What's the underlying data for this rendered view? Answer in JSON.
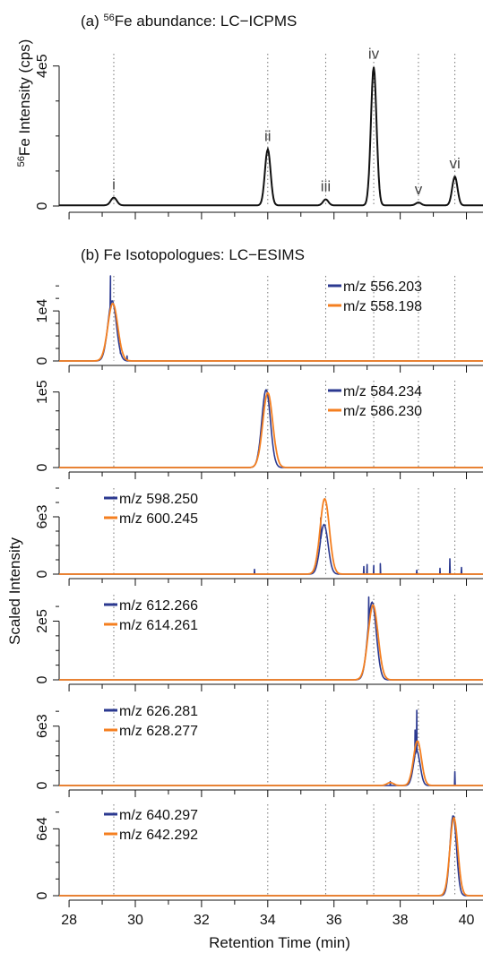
{
  "figure": {
    "xlabel": "Retention Time (min)",
    "shared_ylabel": "Scaled Intensity",
    "x_ticks": [
      28,
      30,
      32,
      34,
      36,
      38,
      40
    ],
    "xlim": [
      27.7,
      40.5
    ],
    "peak_markers": [
      29.35,
      34.0,
      35.75,
      37.2,
      38.55,
      39.65
    ]
  },
  "chart_data": [
    {
      "type": "line",
      "panel": "a",
      "title_prefix": "(a) ",
      "title_iso": "56",
      "title_rest": "Fe abundance: LC−ICPMS",
      "ylabel_iso": "56",
      "ylabel_rest": "Fe  Intensity (cps)",
      "y_ticks": [
        {
          "value": 0,
          "label": "0"
        },
        {
          "value": 400000,
          "label": "4e5"
        }
      ],
      "ylim": [
        0,
        435000
      ],
      "baseline": 2000,
      "peaks": [
        {
          "label": "i",
          "rt": 29.35,
          "height": 22000,
          "sigma": 0.09
        },
        {
          "label": "ii",
          "rt": 34.0,
          "height": 160000,
          "sigma": 0.085
        },
        {
          "label": "iii",
          "rt": 35.75,
          "height": 17000,
          "sigma": 0.08
        },
        {
          "label": "iv",
          "rt": 37.2,
          "height": 395000,
          "sigma": 0.085
        },
        {
          "label": "v",
          "rt": 38.55,
          "height": 8000,
          "sigma": 0.08
        },
        {
          "label": "vi",
          "rt": 39.65,
          "height": 82000,
          "sigma": 0.08
        }
      ]
    },
    {
      "type": "line",
      "panel": "b",
      "title": "(b)  Fe Isotopologues: LC−ESIMS",
      "y_ticks": [
        {
          "value": 0,
          "label": "0"
        },
        {
          "value": 10000,
          "label": "1e4"
        }
      ],
      "ylim": [
        0,
        17000
      ],
      "legend_pos": "top-right",
      "series": [
        {
          "name": "m/z 556.203",
          "color": "#2b3990",
          "peaks": [
            {
              "rt": 29.3,
              "height": 12000,
              "sigma": 0.13
            }
          ],
          "spikes": [
            {
              "rt": 29.25,
              "height": 17000
            },
            {
              "rt": 29.55,
              "height": 1500
            },
            {
              "rt": 29.75,
              "height": 1000
            }
          ]
        },
        {
          "name": "m/z 558.198",
          "color": "#f47f20",
          "peaks": [
            {
              "rt": 29.32,
              "height": 11500,
              "sigma": 0.15
            }
          ],
          "spikes": []
        }
      ]
    },
    {
      "type": "line",
      "panel": "b2",
      "y_ticks": [
        {
          "value": 0,
          "label": "0"
        },
        {
          "value": 100000,
          "label": "1e5"
        }
      ],
      "ylim": [
        0,
        115000
      ],
      "legend_pos": "top-right",
      "series": [
        {
          "name": "m/z 584.234",
          "color": "#2b3990",
          "peaks": [
            {
              "rt": 33.95,
              "height": 103000,
              "sigma": 0.13
            }
          ],
          "spikes": []
        },
        {
          "name": "m/z 586.230",
          "color": "#f47f20",
          "peaks": [
            {
              "rt": 34.0,
              "height": 99000,
              "sigma": 0.15
            }
          ],
          "spikes": []
        }
      ]
    },
    {
      "type": "line",
      "panel": "b3",
      "y_ticks": [
        {
          "value": 0,
          "label": "0"
        },
        {
          "value": 6000,
          "label": "6e3"
        }
      ],
      "ylim": [
        0,
        9000
      ],
      "legend_pos": "top-left",
      "series": [
        {
          "name": "m/z 598.250",
          "color": "#2b3990",
          "peaks": [
            {
              "rt": 35.7,
              "height": 5200,
              "sigma": 0.12
            }
          ],
          "spikes": [
            {
              "rt": 33.6,
              "height": 500
            },
            {
              "rt": 35.6,
              "height": 5900
            },
            {
              "rt": 36.9,
              "height": 800
            },
            {
              "rt": 37.0,
              "height": 1000
            },
            {
              "rt": 37.2,
              "height": 900
            },
            {
              "rt": 37.4,
              "height": 1100
            },
            {
              "rt": 38.5,
              "height": 400
            },
            {
              "rt": 39.2,
              "height": 600
            },
            {
              "rt": 39.5,
              "height": 1600
            },
            {
              "rt": 39.85,
              "height": 700
            }
          ]
        },
        {
          "name": "m/z 600.245",
          "color": "#f47f20",
          "peaks": [
            {
              "rt": 35.72,
              "height": 7900,
              "sigma": 0.14
            }
          ],
          "spikes": []
        }
      ]
    },
    {
      "type": "line",
      "panel": "b4",
      "y_ticks": [
        {
          "value": 0,
          "label": "0"
        },
        {
          "value": 200000,
          "label": "2e5"
        }
      ],
      "ylim": [
        0,
        290000
      ],
      "legend_pos": "top-left",
      "series": [
        {
          "name": "m/z 612.266",
          "color": "#2b3990",
          "peaks": [
            {
              "rt": 37.15,
              "height": 265000,
              "sigma": 0.13
            }
          ],
          "spikes": [
            {
              "rt": 37.05,
              "height": 282000
            }
          ]
        },
        {
          "name": "m/z 614.261",
          "color": "#f47f20",
          "peaks": [
            {
              "rt": 37.18,
              "height": 255000,
              "sigma": 0.15
            }
          ],
          "spikes": []
        }
      ]
    },
    {
      "type": "line",
      "panel": "b5",
      "y_ticks": [
        {
          "value": 0,
          "label": "0"
        },
        {
          "value": 6000,
          "label": "6e3"
        }
      ],
      "ylim": [
        0,
        8600
      ],
      "legend_pos": "top-left",
      "series": [
        {
          "name": "m/z 626.281",
          "color": "#2b3990",
          "peaks": [
            {
              "rt": 38.5,
              "height": 3500,
              "sigma": 0.1
            }
          ],
          "spikes": [
            {
              "rt": 38.5,
              "height": 7600
            },
            {
              "rt": 38.45,
              "height": 5600
            },
            {
              "rt": 37.7,
              "height": 400
            },
            {
              "rt": 39.65,
              "height": 1400
            }
          ]
        },
        {
          "name": "m/z 628.277",
          "color": "#f47f20",
          "peaks": [
            {
              "rt": 38.52,
              "height": 4500,
              "sigma": 0.12
            },
            {
              "rt": 37.7,
              "height": 300,
              "sigma": 0.1
            }
          ],
          "spikes": []
        }
      ]
    },
    {
      "type": "line",
      "panel": "b6",
      "y_ticks": [
        {
          "value": 0,
          "label": "0"
        },
        {
          "value": 60000,
          "label": "6e4"
        }
      ],
      "ylim": [
        0,
        82000
      ],
      "legend_pos": "top-left",
      "series": [
        {
          "name": "m/z 640.297",
          "color": "#2b3990",
          "peaks": [
            {
              "rt": 39.6,
              "height": 72000,
              "sigma": 0.1
            }
          ],
          "spikes": []
        },
        {
          "name": "m/z 642.292",
          "color": "#f47f20",
          "peaks": [
            {
              "rt": 39.62,
              "height": 70000,
              "sigma": 0.12
            }
          ],
          "spikes": []
        }
      ]
    }
  ]
}
